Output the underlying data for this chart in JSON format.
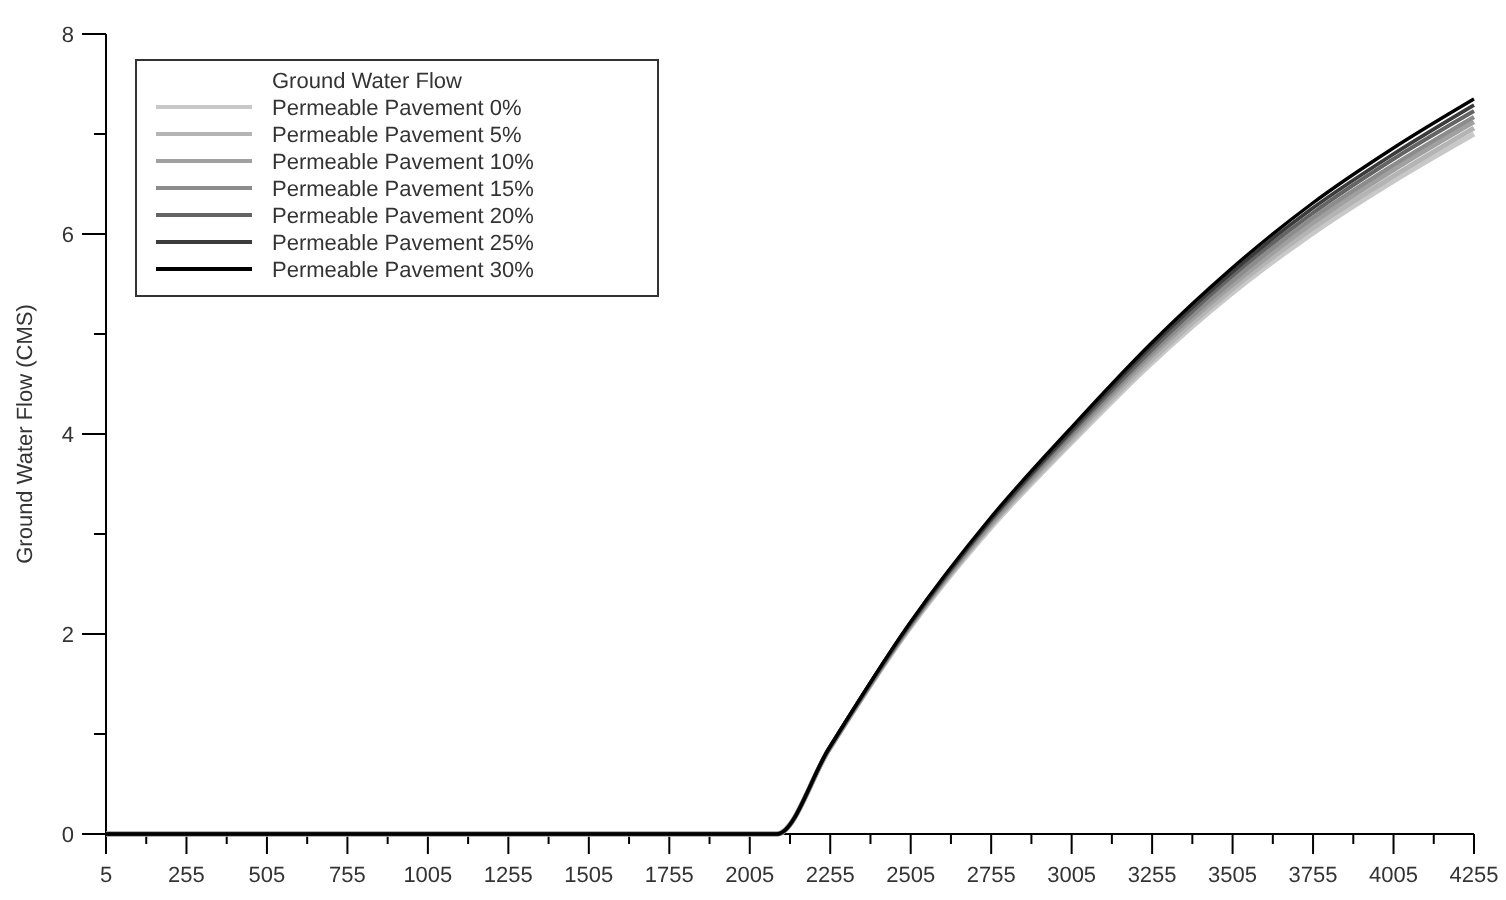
{
  "chart_data": {
    "type": "line",
    "ylabel": "Ground Water Flow (CMS)",
    "legend_title": "Ground Water Flow",
    "legend": "top left",
    "grid": false,
    "marker": "none",
    "line_style": "solid",
    "x": [
      5,
      2090,
      2250,
      2500,
      2750,
      3000,
      3250,
      3500,
      3750,
      4000,
      4255
    ],
    "xlim": [
      5,
      4255
    ],
    "xticks": [
      5,
      {
        "value": 130,
        "label": null
      },
      255,
      {
        "value": 380,
        "label": null
      },
      505,
      {
        "value": 630,
        "label": null
      },
      755,
      {
        "value": 880,
        "label": null
      },
      1005,
      {
        "value": 1130,
        "label": null
      },
      1255,
      {
        "value": 1380,
        "label": null
      },
      1505,
      {
        "value": 1630,
        "label": null
      },
      1755,
      {
        "value": 1880,
        "label": null
      },
      2005,
      {
        "value": 2130,
        "label": null
      },
      2255,
      {
        "value": 2380,
        "label": null
      },
      2505,
      {
        "value": 2630,
        "label": null
      },
      2755,
      {
        "value": 2880,
        "label": null
      },
      3005,
      {
        "value": 3130,
        "label": null
      },
      3255,
      {
        "value": 3380,
        "label": null
      },
      3505,
      {
        "value": 3630,
        "label": null
      },
      3755,
      {
        "value": 3880,
        "label": null
      },
      4005,
      {
        "value": 4130,
        "label": null
      },
      4255
    ],
    "ylim": [
      0,
      8
    ],
    "yticks": [
      0,
      {
        "value": 1,
        "label": null
      },
      2,
      {
        "value": 3,
        "label": null
      },
      4,
      {
        "value": 5,
        "label": null
      },
      6,
      {
        "value": 7,
        "label": null
      },
      8
    ],
    "series": [
      {
        "name": "Permeable Pavement 0%",
        "color": "#c8c8c8",
        "values": [
          0,
          0,
          0.84,
          2.05,
          3.05,
          3.9,
          4.7,
          5.4,
          6.0,
          6.52,
          7.0
        ]
      },
      {
        "name": "Permeable Pavement 5%",
        "color": "#b4b4b4",
        "values": [
          0,
          0,
          0.84,
          2.06,
          3.07,
          3.92,
          4.73,
          5.44,
          6.05,
          6.57,
          7.06
        ]
      },
      {
        "name": "Permeable Pavement 10%",
        "color": "#a0a0a0",
        "values": [
          0,
          0,
          0.84,
          2.07,
          3.08,
          3.95,
          4.77,
          5.48,
          6.1,
          6.63,
          7.12
        ]
      },
      {
        "name": "Permeable Pavement 15%",
        "color": "#8c8c8c",
        "values": [
          0,
          0,
          0.84,
          2.07,
          3.1,
          3.97,
          4.8,
          5.52,
          6.15,
          6.68,
          7.17
        ]
      },
      {
        "name": "Permeable Pavement 20%",
        "color": "#646464",
        "values": [
          0,
          0,
          0.85,
          2.08,
          3.12,
          4.0,
          4.83,
          5.57,
          6.2,
          6.74,
          7.23
        ]
      },
      {
        "name": "Permeable Pavement 25%",
        "color": "#3c3c3c",
        "values": [
          0,
          0,
          0.85,
          2.09,
          3.13,
          4.02,
          4.87,
          5.61,
          6.25,
          6.79,
          7.29
        ]
      },
      {
        "name": "Permeable Pavement 30%",
        "color": "#000000",
        "values": [
          0,
          0,
          0.85,
          2.1,
          3.15,
          4.05,
          4.9,
          5.65,
          6.3,
          6.85,
          7.35
        ]
      }
    ]
  }
}
